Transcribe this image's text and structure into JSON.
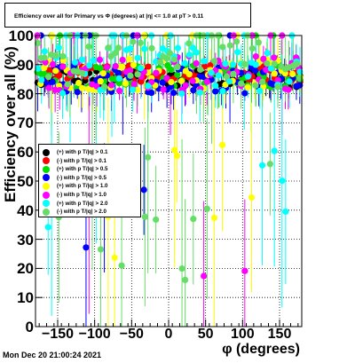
{
  "title": "Efficiency over all for Primary vs Φ (degrees) at |η| <= 1.0 at pT > 0.11",
  "timestamp": "Mon Dec 20 21:00:24 2021",
  "chart_data": {
    "type": "scatter",
    "xlabel": "φ (degrees)",
    "ylabel": "Efficiency over all (%)",
    "xlim": [
      -180,
      180
    ],
    "ylim": [
      0,
      100
    ],
    "xticks": [
      -150,
      -100,
      -50,
      0,
      50,
      100,
      150
    ],
    "xtick_labels": [
      "−150",
      "−100",
      "−50",
      "0",
      "50",
      "100",
      "150"
    ],
    "yticks": [
      0,
      10,
      20,
      30,
      40,
      50,
      60,
      70,
      80,
      90,
      100
    ],
    "grid": true,
    "legend_position": "left-middle",
    "series": [
      {
        "name": "(+) with p T/|q| > 0.1",
        "color": "#000000",
        "base": 85,
        "spread": 3,
        "fail_rate": 0.0
      },
      {
        "name": "(-) with p T/|q| > 0.1",
        "color": "#ff0000",
        "base": 87,
        "spread": 3,
        "fail_rate": 0.0
      },
      {
        "name": "(+) with p T/|q| > 0.5",
        "color": "#00dd00",
        "base": 86,
        "spread": 4,
        "fail_rate": 0.02
      },
      {
        "name": "(-) with p T/|q| > 0.5",
        "color": "#0000ff",
        "base": 85,
        "spread": 5,
        "fail_rate": 0.02
      },
      {
        "name": "(+) with p T/|q| > 1.0",
        "color": "#ffff00",
        "base": 86,
        "spread": 6,
        "fail_rate": 0.05
      },
      {
        "name": "(-) with p T/|q| > 1.0",
        "color": "#ff00ff",
        "base": 87,
        "spread": 6,
        "fail_rate": 0.06
      },
      {
        "name": "(+) with p T/|q| > 2.0",
        "color": "#00ffff",
        "base": 88,
        "spread": 8,
        "fail_rate": 0.12
      },
      {
        "name": "(-) with p T/|q| > 2.0",
        "color": "#66dd66",
        "base": 90,
        "spread": 8,
        "fail_rate": 0.15
      }
    ]
  }
}
